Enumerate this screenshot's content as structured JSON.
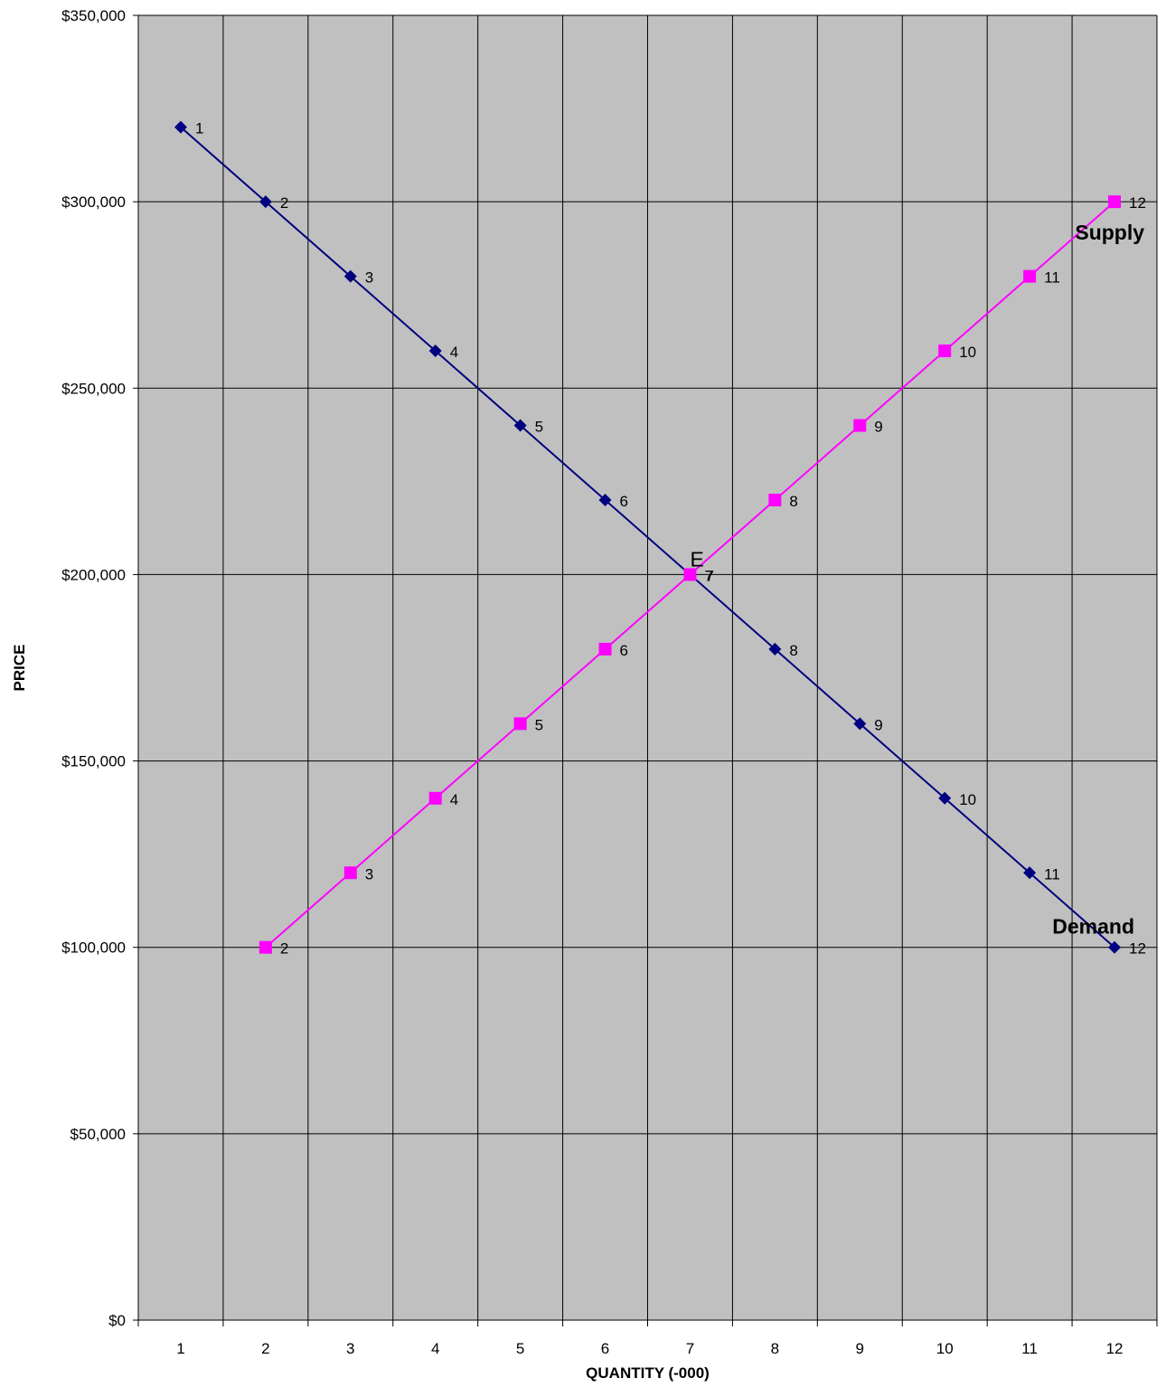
{
  "chart_data": {
    "type": "line",
    "xlabel": "QUANTITY (-000)",
    "ylabel": "PRICE",
    "categories": [
      "1",
      "2",
      "3",
      "4",
      "5",
      "6",
      "7",
      "8",
      "9",
      "10",
      "11",
      "12"
    ],
    "ylim": [
      0,
      350000
    ],
    "y_ticks": [
      0,
      50000,
      100000,
      150000,
      200000,
      250000,
      300000,
      350000
    ],
    "y_tick_labels": [
      "$0",
      "$50,000",
      "$100,000",
      "$150,000",
      "$200,000",
      "$250,000",
      "$300,000",
      "$350,000"
    ],
    "grid": true,
    "plot_background": "#c0c0c0",
    "series": [
      {
        "name": "Demand",
        "color": "#000080",
        "marker": "diamond",
        "x": [
          1,
          2,
          3,
          4,
          5,
          6,
          7,
          8,
          9,
          10,
          11,
          12
        ],
        "values": [
          320000,
          300000,
          280000,
          260000,
          240000,
          220000,
          200000,
          180000,
          160000,
          140000,
          120000,
          100000
        ],
        "point_labels": [
          "1",
          "2",
          "3",
          "4",
          "5",
          "6",
          "7",
          "8",
          "9",
          "10",
          "11",
          "12"
        ]
      },
      {
        "name": "Supply",
        "color": "#ff00ff",
        "marker": "square",
        "x": [
          2,
          3,
          4,
          5,
          6,
          7,
          8,
          9,
          10,
          11,
          12
        ],
        "values": [
          100000,
          120000,
          140000,
          160000,
          180000,
          200000,
          220000,
          240000,
          260000,
          280000,
          300000
        ],
        "point_labels": [
          "2",
          "3",
          "4",
          "5",
          "6",
          "7",
          "8",
          "9",
          "10",
          "11",
          "12"
        ]
      }
    ],
    "annotations": [
      {
        "text": "E",
        "x": 7,
        "y": 200000
      }
    ]
  }
}
